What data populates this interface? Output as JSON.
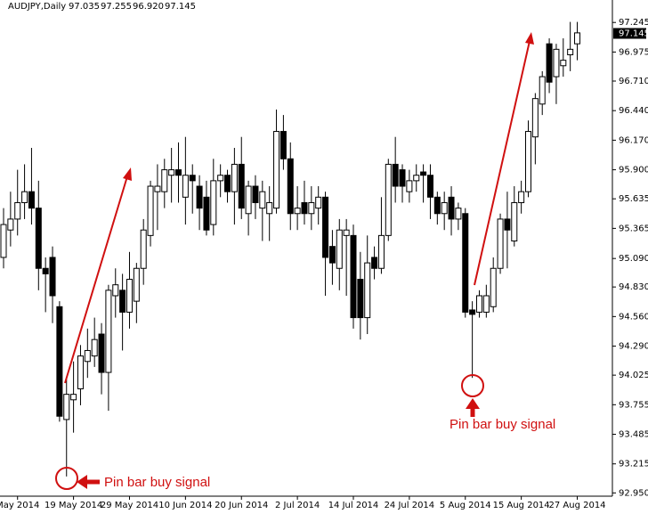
{
  "chart_data": {
    "type": "candlestick",
    "title": "AUDJPY,Daily",
    "header_values": [
      "97.035",
      "97.255",
      "96.920",
      "97.145"
    ],
    "last_price": 97.145,
    "ylim": [
      92.92,
      97.45
    ],
    "yticks": [
      97.245,
      96.975,
      {
        "value": 96.71,
        "label": "96.710"
      },
      {
        "value": 96.44,
        "label": "96.440"
      },
      {
        "value": 96.17,
        "label": "96.170"
      },
      {
        "value": 95.9,
        "label": "95.900"
      },
      95.635,
      95.365,
      {
        "value": 95.09,
        "label": "95.090"
      },
      {
        "value": 94.83,
        "label": "94.830"
      },
      {
        "value": 94.56,
        "label": "94.560"
      },
      {
        "value": 94.29,
        "label": "94.290"
      },
      94.025,
      93.755,
      93.485,
      93.215,
      {
        "value": 92.95,
        "label": "92.950"
      }
    ],
    "xticks": [
      {
        "value": 2,
        "label": "May 2014"
      },
      {
        "value": 10,
        "label": "19 May 2014"
      },
      {
        "value": 18,
        "label": "29 May 2014"
      },
      {
        "value": 26,
        "label": "10 Jun 2014"
      },
      {
        "value": 34,
        "label": "20 Jun 2014"
      },
      {
        "value": 42,
        "label": "2 Jul 2014"
      },
      {
        "value": 50,
        "label": "14 Jul 2014"
      },
      {
        "value": 58,
        "label": "24 Jul 2014"
      },
      {
        "value": 66,
        "label": "5 Aug 2014"
      },
      {
        "value": 74,
        "label": "15 Aug 2014"
      },
      {
        "value": 82,
        "label": "27 Aug 2014"
      }
    ],
    "bull_color": "#ffffff",
    "bear_color": "#000000",
    "open": [
      95.1,
      95.35,
      95.45,
      95.6,
      95.7,
      95.55,
      95.0,
      95.1,
      94.65,
      93.62,
      93.8,
      93.9,
      94.15,
      94.2,
      94.4,
      94.05,
      94.75,
      94.8,
      94.6,
      94.7,
      95.0,
      95.3,
      95.7,
      95.7,
      95.85,
      95.9,
      95.65,
      95.85,
      95.75,
      95.65,
      95.4,
      95.8,
      95.85,
      95.7,
      95.95,
      95.5,
      95.75,
      95.55,
      95.5,
      95.55,
      96.25,
      96.0,
      95.5,
      95.6,
      95.5,
      95.55,
      95.65,
      95.2,
      95.0,
      95.3,
      95.3,
      94.9,
      94.55,
      95.1,
      95.0,
      95.3,
      95.95,
      95.9,
      95.7,
      95.8,
      95.88,
      95.85,
      95.65,
      95.5,
      95.65,
      95.45,
      95.5,
      94.62,
      94.6,
      94.6,
      94.65,
      95.0,
      95.45,
      95.25,
      95.6,
      95.7,
      96.2,
      96.5,
      97.05,
      96.75,
      96.85,
      96.95,
      97.05
    ],
    "high": [
      95.55,
      95.7,
      95.9,
      95.95,
      96.1,
      95.8,
      95.1,
      95.2,
      94.7,
      94.0,
      94.15,
      94.3,
      94.45,
      94.55,
      94.5,
      94.85,
      95.0,
      94.95,
      95.15,
      95.05,
      95.45,
      95.8,
      95.95,
      96.0,
      96.1,
      96.15,
      96.2,
      95.95,
      95.85,
      95.8,
      96.0,
      95.95,
      95.9,
      96.1,
      96.2,
      95.8,
      95.85,
      95.8,
      95.75,
      96.45,
      96.4,
      96.15,
      95.75,
      95.8,
      95.75,
      95.75,
      95.7,
      95.35,
      95.45,
      95.45,
      95.4,
      95.15,
      95.3,
      95.2,
      95.65,
      96.0,
      96.2,
      95.95,
      95.9,
      95.95,
      95.95,
      95.95,
      95.7,
      95.7,
      95.75,
      95.6,
      95.55,
      94.7,
      94.8,
      94.85,
      95.1,
      95.5,
      95.7,
      95.75,
      95.8,
      96.35,
      96.6,
      96.8,
      97.1,
      97.05,
      97.1,
      97.25,
      97.25
    ],
    "low": [
      95.0,
      95.2,
      95.3,
      95.45,
      95.4,
      94.8,
      94.6,
      94.5,
      93.6,
      93.1,
      93.5,
      93.75,
      94.0,
      94.1,
      93.85,
      93.7,
      94.55,
      94.25,
      94.45,
      94.5,
      94.85,
      95.2,
      95.35,
      95.55,
      95.6,
      95.6,
      95.4,
      95.5,
      95.35,
      95.3,
      95.3,
      95.65,
      95.6,
      95.4,
      95.45,
      95.3,
      95.45,
      95.25,
      95.25,
      95.5,
      95.9,
      95.35,
      95.35,
      95.4,
      95.35,
      95.4,
      94.75,
      94.85,
      94.8,
      94.75,
      94.45,
      94.35,
      94.4,
      94.9,
      94.95,
      95.25,
      95.6,
      95.6,
      95.6,
      95.7,
      95.6,
      95.45,
      95.4,
      95.35,
      95.3,
      95.35,
      94.55,
      94.0,
      94.55,
      94.55,
      94.6,
      94.95,
      95.0,
      95.2,
      95.5,
      95.65,
      95.95,
      96.4,
      96.6,
      96.5,
      96.75,
      96.8,
      96.9
    ],
    "close": [
      95.4,
      95.45,
      95.6,
      95.7,
      95.55,
      95.0,
      94.95,
      94.75,
      93.65,
      93.85,
      93.85,
      94.2,
      94.25,
      94.35,
      94.05,
      94.8,
      94.85,
      94.6,
      94.9,
      95.0,
      95.35,
      95.75,
      95.75,
      95.9,
      95.9,
      95.85,
      95.85,
      95.8,
      95.55,
      95.35,
      95.8,
      95.85,
      95.7,
      95.95,
      95.55,
      95.75,
      95.6,
      95.7,
      95.6,
      96.25,
      96.0,
      95.5,
      95.55,
      95.5,
      95.6,
      95.65,
      95.1,
      95.05,
      95.35,
      95.35,
      94.55,
      94.55,
      95.05,
      95.0,
      95.3,
      95.95,
      95.75,
      95.75,
      95.8,
      95.85,
      95.85,
      95.65,
      95.5,
      95.6,
      95.45,
      95.55,
      94.6,
      94.58,
      94.75,
      94.75,
      95.0,
      95.45,
      95.35,
      95.6,
      95.7,
      96.25,
      96.55,
      96.75,
      96.7,
      97.0,
      96.9,
      97.0,
      97.15
    ],
    "annotations": [
      "Pin bar buy signal",
      "Pin bar buy signal"
    ]
  }
}
